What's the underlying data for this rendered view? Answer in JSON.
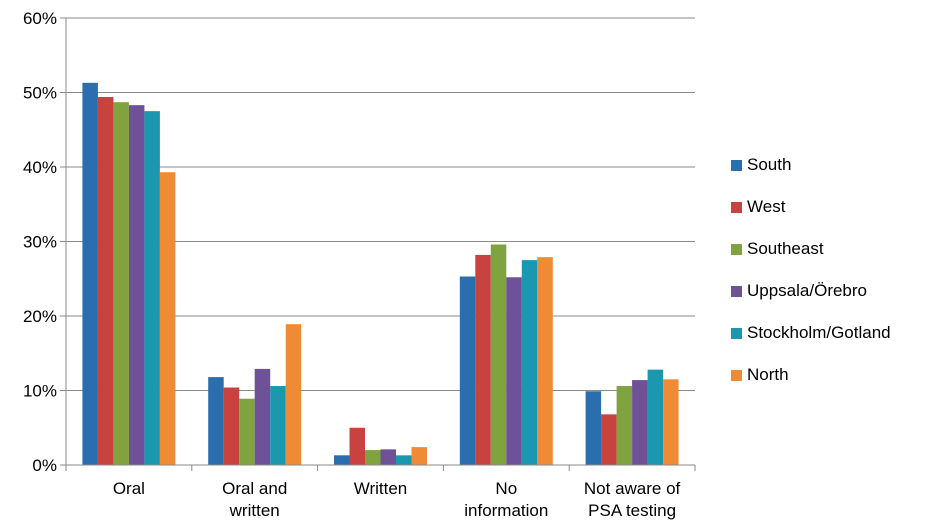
{
  "chart_data": {
    "type": "bar",
    "categories": [
      [
        "Oral"
      ],
      [
        "Oral and",
        "written"
      ],
      [
        "Written"
      ],
      [
        "No",
        "information"
      ],
      [
        "Not aware of",
        "PSA testing"
      ]
    ],
    "series": [
      {
        "name": "South",
        "color": "#2a6ead",
        "values": [
          51.3,
          11.8,
          1.3,
          25.3,
          9.9
        ]
      },
      {
        "name": "West",
        "color": "#c8433f",
        "values": [
          49.4,
          10.4,
          5.0,
          28.2,
          6.8
        ]
      },
      {
        "name": "Southeast",
        "color": "#7ea33f",
        "values": [
          48.7,
          8.9,
          2.0,
          29.6,
          10.6
        ]
      },
      {
        "name": "Uppsala/Örebro",
        "color": "#6e5196",
        "values": [
          48.3,
          12.9,
          2.1,
          25.2,
          11.4
        ]
      },
      {
        "name": "Stockholm/Gotland",
        "color": "#1c97b0",
        "values": [
          47.5,
          10.6,
          1.3,
          27.5,
          12.8
        ]
      },
      {
        "name": "North",
        "color": "#f08b35",
        "values": [
          39.3,
          18.9,
          2.4,
          27.9,
          11.5
        ]
      }
    ],
    "yticks": [
      "0%",
      "10%",
      "20%",
      "30%",
      "40%",
      "50%",
      "60%"
    ],
    "ylim": [
      0,
      60
    ],
    "ylabel": "",
    "xlabel": "",
    "grid": true,
    "legend_position": "right"
  }
}
